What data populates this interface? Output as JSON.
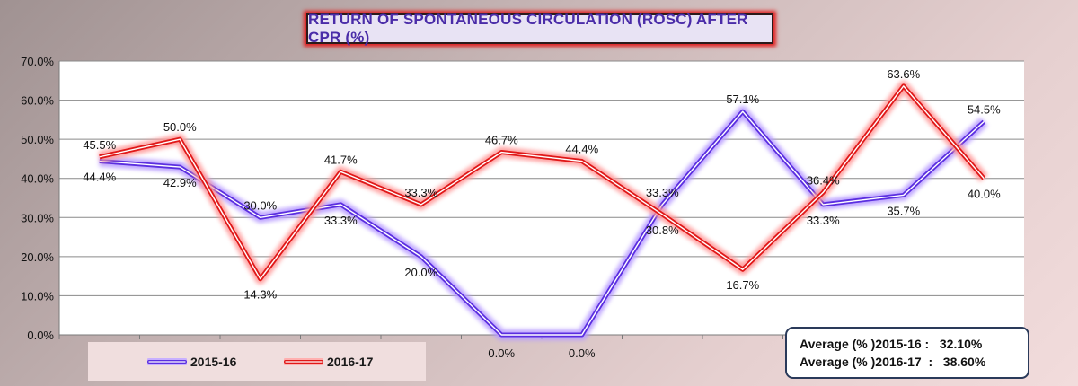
{
  "chart_data": {
    "type": "line",
    "title": "RETURN OF SPONTANEOUS CIRCULATION (ROSC) AFTER CPR (%)",
    "xlabel": "",
    "ylabel": "",
    "ylim": [
      0,
      70
    ],
    "yticks": [
      "0.0%",
      "10.0%",
      "20.0%",
      "30.0%",
      "40.0%",
      "50.0%",
      "60.0%",
      "70.0%"
    ],
    "grid": true,
    "legend_position": "bottom-left",
    "series": [
      {
        "name": "2015-16",
        "color": "#5a2ee0",
        "values": [
          44.4,
          42.9,
          30.0,
          33.3,
          20.0,
          0.0,
          0.0,
          33.3,
          57.1,
          33.3,
          35.7,
          54.5
        ],
        "labels": [
          "44.4%",
          "42.9%",
          "30.0%",
          "33.3%",
          "20.0%",
          "0.0%",
          "0.0%",
          "33.3%",
          "57.1%",
          "33.3%",
          "35.7%",
          "54.5%"
        ]
      },
      {
        "name": "2016-17",
        "color": "#e01818",
        "values": [
          45.5,
          50.0,
          14.3,
          41.7,
          33.3,
          46.7,
          44.4,
          30.8,
          16.7,
          36.4,
          63.6,
          40.0
        ],
        "labels": [
          "45.5%",
          "50.0%",
          "14.3%",
          "41.7%",
          "33.3%",
          "46.7%",
          "44.4%",
          "30.8%",
          "16.7%",
          "36.4%",
          "63.6%",
          "40.0%"
        ]
      }
    ]
  },
  "averages": [
    {
      "label": "Average (% )2015-16 :",
      "value": "32.10%"
    },
    {
      "label": "Average (% )2016-17  :",
      "value": "38.60%"
    }
  ]
}
